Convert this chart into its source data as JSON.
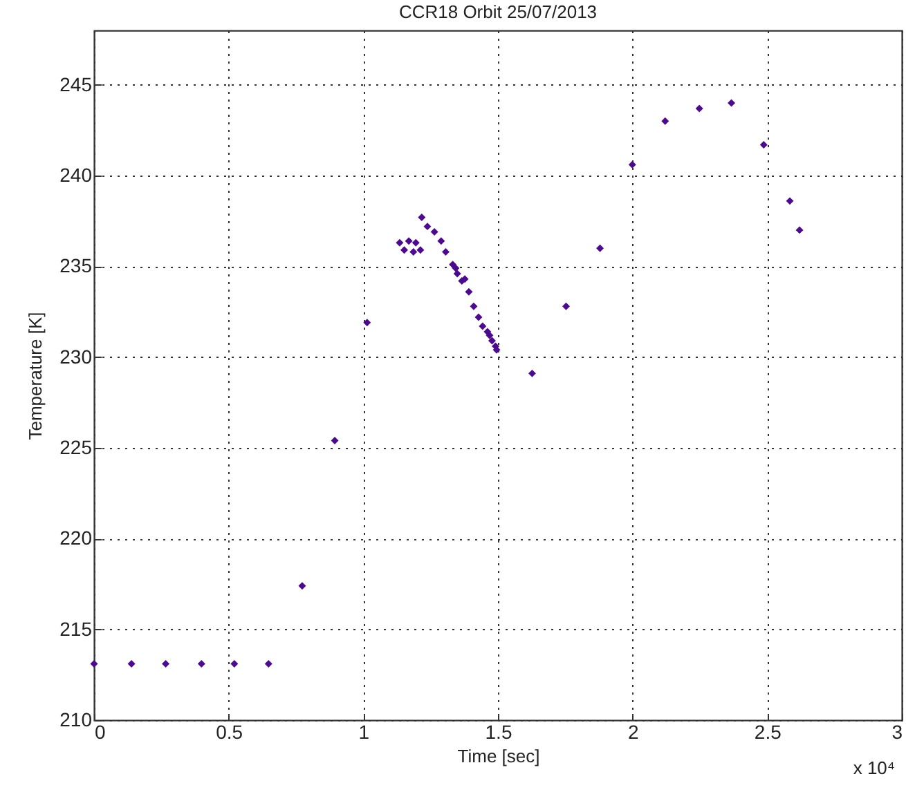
{
  "chart_data": {
    "type": "scatter",
    "title": "CCR18 Orbit 25/07/2013",
    "xlabel": "Time [sec]",
    "ylabel": "Temperature [K]",
    "annotations": [
      "x 10⁴"
    ],
    "series": [
      {
        "color": "#4b0b8c",
        "x": [
          0,
          0.139,
          0.266,
          0.399,
          0.521,
          0.648,
          0.773,
          0.894,
          1.014,
          1.135,
          1.152,
          1.169,
          1.186,
          1.195,
          1.212,
          1.217,
          1.238,
          1.264,
          1.289,
          1.306,
          1.332,
          1.343,
          1.349,
          1.366,
          1.377,
          1.392,
          1.41,
          1.428,
          1.443,
          1.461,
          1.469,
          1.478,
          1.491,
          1.495,
          1.627,
          1.753,
          1.879,
          1.999,
          2.121,
          2.248,
          2.367,
          2.487,
          2.584,
          2.62
        ],
        "values": [
          213.1,
          213.1,
          213.1,
          213.1,
          213.1,
          213.1,
          217.4,
          225.4,
          231.9,
          236.3,
          235.9,
          236.4,
          235.8,
          236.3,
          235.9,
          237.7,
          237.2,
          236.9,
          236.4,
          235.8,
          235.1,
          234.9,
          234.6,
          234.2,
          234.3,
          233.6,
          232.8,
          232.2,
          231.7,
          231.4,
          231.2,
          230.9,
          230.6,
          230.4,
          229.1,
          232.8,
          236.0,
          240.6,
          243.0,
          243.7,
          244.0,
          241.7,
          238.6,
          237.0
        ]
      }
    ],
    "xlim": [
      0,
      3
    ],
    "xticks": [
      0,
      0.5,
      1,
      1.5,
      2,
      2.5,
      3
    ],
    "ylim": [
      210,
      248
    ],
    "yticks": [
      210,
      215,
      220,
      225,
      230,
      235,
      240,
      245
    ],
    "grid": true,
    "marker": "diamond"
  }
}
